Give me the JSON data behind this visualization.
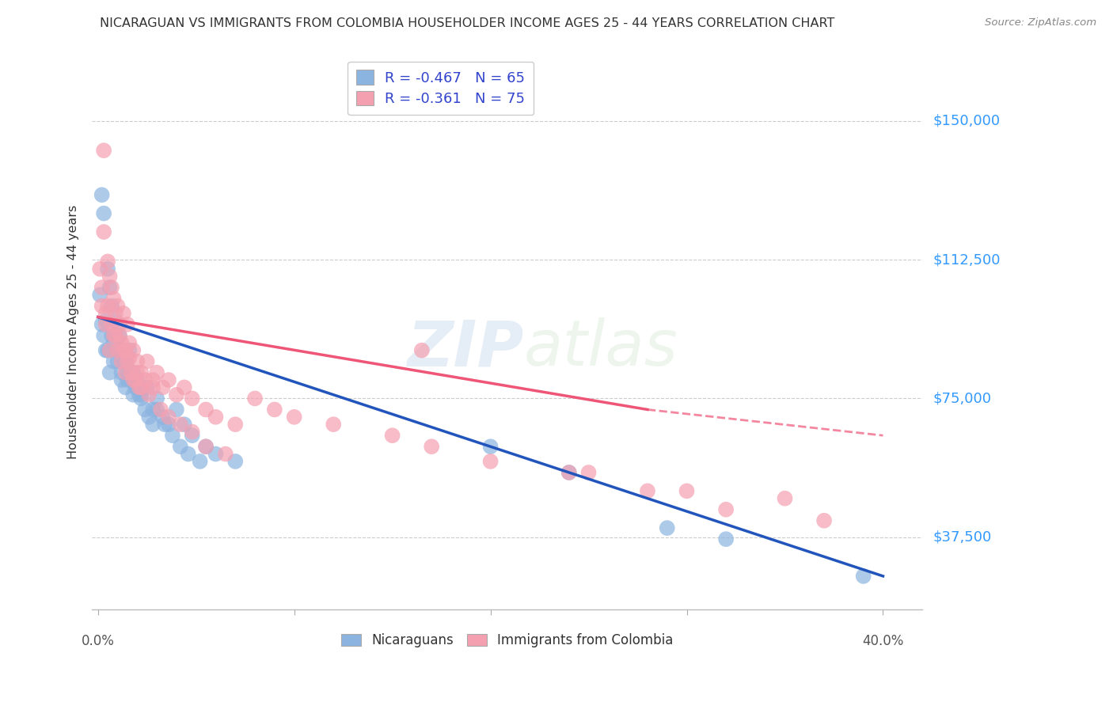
{
  "title": "NICARAGUAN VS IMMIGRANTS FROM COLOMBIA HOUSEHOLDER INCOME AGES 25 - 44 YEARS CORRELATION CHART",
  "source": "Source: ZipAtlas.com",
  "ylabel": "Householder Income Ages 25 - 44 years",
  "ytick_labels": [
    "$37,500",
    "$75,000",
    "$112,500",
    "$150,000"
  ],
  "ytick_values": [
    37500,
    75000,
    112500,
    150000
  ],
  "ylim": [
    18000,
    168000
  ],
  "xlim": [
    -0.003,
    0.42
  ],
  "legend_blue_r": "R = -0.467",
  "legend_blue_n": "N = 65",
  "legend_pink_r": "R = -0.361",
  "legend_pink_n": "N = 75",
  "blue_color": "#8CB4E0",
  "pink_color": "#F4A0B0",
  "blue_line_color": "#2255BB",
  "pink_line_color": "#EE5577",
  "watermark_zip": "ZIP",
  "watermark_atlas": "atlas",
  "legend_label_blue": "Nicaraguans",
  "legend_label_pink": "Immigrants from Colombia",
  "blue_scatter_x": [
    0.001,
    0.002,
    0.003,
    0.004,
    0.005,
    0.006,
    0.007,
    0.008,
    0.009,
    0.01,
    0.011,
    0.012,
    0.013,
    0.014,
    0.015,
    0.016,
    0.018,
    0.02,
    0.022,
    0.025,
    0.028,
    0.03,
    0.033,
    0.036,
    0.04,
    0.044,
    0.048,
    0.055,
    0.06,
    0.07,
    0.002,
    0.004,
    0.006,
    0.008,
    0.01,
    0.012,
    0.014,
    0.016,
    0.018,
    0.02,
    0.022,
    0.024,
    0.026,
    0.028,
    0.03,
    0.034,
    0.038,
    0.042,
    0.046,
    0.052,
    0.003,
    0.005,
    0.007,
    0.009,
    0.011,
    0.013,
    0.015,
    0.017,
    0.019,
    0.021,
    0.2,
    0.24,
    0.29,
    0.32,
    0.39
  ],
  "blue_scatter_y": [
    103000,
    130000,
    92000,
    96000,
    88000,
    105000,
    92000,
    85000,
    96000,
    88000,
    92000,
    82000,
    88000,
    85000,
    80000,
    88000,
    82000,
    80000,
    76000,
    78000,
    72000,
    75000,
    70000,
    68000,
    72000,
    68000,
    65000,
    62000,
    60000,
    58000,
    95000,
    88000,
    82000,
    90000,
    85000,
    80000,
    78000,
    82000,
    76000,
    78000,
    75000,
    72000,
    70000,
    68000,
    72000,
    68000,
    65000,
    62000,
    60000,
    58000,
    125000,
    110000,
    100000,
    92000,
    88000,
    85000,
    82000,
    80000,
    78000,
    76000,
    62000,
    55000,
    40000,
    37000,
    27000
  ],
  "pink_scatter_x": [
    0.001,
    0.002,
    0.003,
    0.004,
    0.005,
    0.006,
    0.007,
    0.008,
    0.009,
    0.01,
    0.011,
    0.012,
    0.013,
    0.014,
    0.015,
    0.016,
    0.018,
    0.02,
    0.022,
    0.025,
    0.028,
    0.03,
    0.033,
    0.036,
    0.04,
    0.044,
    0.048,
    0.055,
    0.06,
    0.07,
    0.002,
    0.004,
    0.006,
    0.008,
    0.01,
    0.012,
    0.014,
    0.016,
    0.018,
    0.02,
    0.022,
    0.024,
    0.026,
    0.028,
    0.032,
    0.036,
    0.042,
    0.048,
    0.055,
    0.065,
    0.003,
    0.005,
    0.007,
    0.009,
    0.011,
    0.013,
    0.015,
    0.017,
    0.019,
    0.021,
    0.08,
    0.09,
    0.1,
    0.12,
    0.15,
    0.17,
    0.2,
    0.25,
    0.3,
    0.35,
    0.165,
    0.24,
    0.28,
    0.32,
    0.37
  ],
  "pink_scatter_y": [
    110000,
    105000,
    142000,
    98000,
    100000,
    108000,
    95000,
    102000,
    92000,
    100000,
    95000,
    90000,
    98000,
    88000,
    95000,
    90000,
    88000,
    85000,
    82000,
    85000,
    80000,
    82000,
    78000,
    80000,
    76000,
    78000,
    75000,
    72000,
    70000,
    68000,
    100000,
    95000,
    88000,
    92000,
    88000,
    85000,
    82000,
    86000,
    80000,
    82000,
    78000,
    80000,
    76000,
    78000,
    72000,
    70000,
    68000,
    66000,
    62000,
    60000,
    120000,
    112000,
    105000,
    98000,
    92000,
    88000,
    85000,
    82000,
    80000,
    78000,
    75000,
    72000,
    70000,
    68000,
    65000,
    62000,
    58000,
    55000,
    50000,
    48000,
    88000,
    55000,
    50000,
    45000,
    42000
  ]
}
